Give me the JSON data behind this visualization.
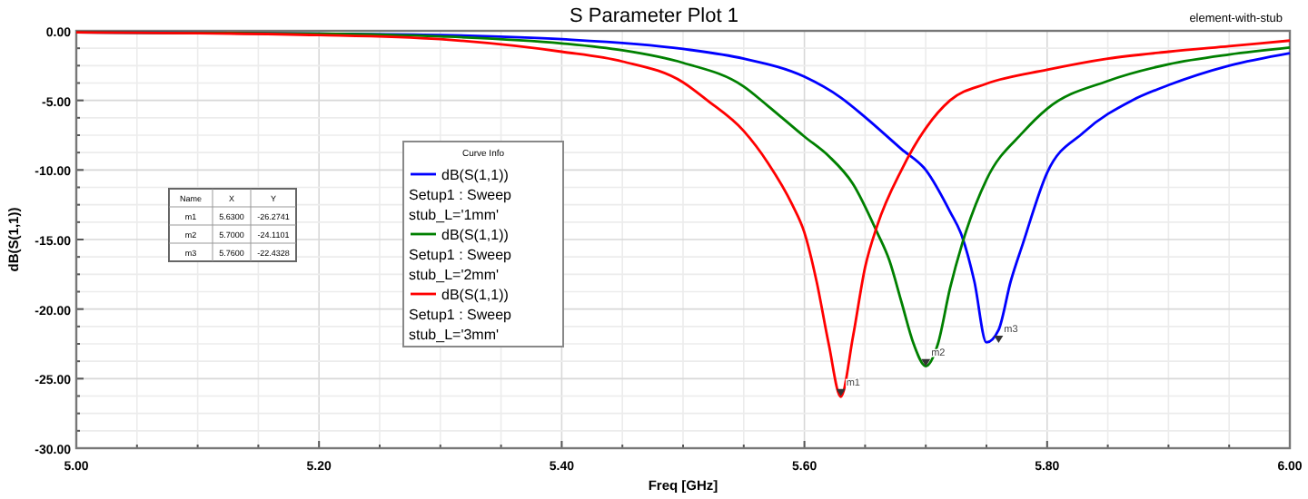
{
  "chart_data": {
    "type": "line",
    "title": "S Parameter Plot 1",
    "xlabel": "Freq [GHz]",
    "ylabel": "dB(S(1,1))",
    "legend_title": "Curve Info",
    "legend": "left",
    "grid": true,
    "line_style": "solid",
    "xlim": [
      5,
      6
    ],
    "xticks": [
      {
        "value": 5,
        "label": "5.00"
      },
      {
        "value": 5.05,
        "label": null
      },
      {
        "value": 5.1,
        "label": null
      },
      {
        "value": 5.15,
        "label": null
      },
      {
        "value": 5.2,
        "label": "5.20"
      },
      {
        "value": 5.25,
        "label": null
      },
      {
        "value": 5.3,
        "label": null
      },
      {
        "value": 5.35,
        "label": null
      },
      {
        "value": 5.4,
        "label": "5.40"
      },
      {
        "value": 5.45,
        "label": null
      },
      {
        "value": 5.5,
        "label": null
      },
      {
        "value": 5.55,
        "label": null
      },
      {
        "value": 5.6,
        "label": "5.60"
      },
      {
        "value": 5.65,
        "label": null
      },
      {
        "value": 5.7,
        "label": null
      },
      {
        "value": 5.75,
        "label": null
      },
      {
        "value": 5.8,
        "label": "5.80"
      },
      {
        "value": 5.85,
        "label": null
      },
      {
        "value": 5.9,
        "label": null
      },
      {
        "value": 5.95,
        "label": null
      },
      {
        "value": 6,
        "label": "6.00"
      }
    ],
    "ylim": [
      -30,
      0
    ],
    "yticks": [
      {
        "value": -30,
        "label": "-30.00"
      },
      {
        "value": -28.75,
        "label": null
      },
      {
        "value": -27.5,
        "label": null
      },
      {
        "value": -26.25,
        "label": null
      },
      {
        "value": -25,
        "label": "-25.00"
      },
      {
        "value": -23.75,
        "label": null
      },
      {
        "value": -22.5,
        "label": null
      },
      {
        "value": -21.25,
        "label": null
      },
      {
        "value": -20,
        "label": "-20.00"
      },
      {
        "value": -18.75,
        "label": null
      },
      {
        "value": -17.5,
        "label": null
      },
      {
        "value": -16.25,
        "label": null
      },
      {
        "value": -15,
        "label": "-15.00"
      },
      {
        "value": -13.75,
        "label": null
      },
      {
        "value": -12.5,
        "label": null
      },
      {
        "value": -11.25,
        "label": null
      },
      {
        "value": -10,
        "label": "-10.00"
      },
      {
        "value": -8.75,
        "label": null
      },
      {
        "value": -7.5,
        "label": null
      },
      {
        "value": -6.25,
        "label": null
      },
      {
        "value": -5,
        "label": "-5.00"
      },
      {
        "value": -3.75,
        "label": null
      },
      {
        "value": -2.5,
        "label": null
      },
      {
        "value": -1.25,
        "label": null
      },
      {
        "value": 0,
        "label": "0.00"
      }
    ],
    "series": [
      {
        "name": "dB(S(1,1))\nSetup1 : Sweep\nstub_L='1mm'",
        "color": "#0000ff",
        "x": [
          5,
          5.2,
          5.3,
          5.4,
          5.5,
          5.55,
          5.6,
          5.63,
          5.65,
          5.68,
          5.7,
          5.72,
          5.73,
          5.74,
          5.75,
          5.76,
          5.77,
          5.78,
          5.8,
          5.83,
          5.87,
          5.9,
          5.95,
          6
        ],
        "values": [
          -0.1,
          -0.2,
          -0.3,
          -0.6,
          -1.3,
          -2,
          -3.3,
          -4.8,
          -6.2,
          -8.5,
          -10,
          -13,
          -14.8,
          -18,
          -22.4,
          -21.5,
          -18,
          -15.3,
          -10.2,
          -7.3,
          -5,
          -3.9,
          -2.5,
          -1.6
        ]
      },
      {
        "name": "dB(S(1,1))\nSetup1 : Sweep\nstub_L='2mm'",
        "color": "#008000",
        "x": [
          5,
          5.2,
          5.3,
          5.4,
          5.45,
          5.5,
          5.55,
          5.57,
          5.6,
          5.62,
          5.64,
          5.66,
          5.67,
          5.68,
          5.69,
          5.7,
          5.71,
          5.72,
          5.73,
          5.75,
          5.78,
          5.8,
          5.85,
          5.9,
          5.95,
          6
        ],
        "values": [
          -0.1,
          -0.2,
          -0.4,
          -0.9,
          -1.4,
          -2.3,
          -4,
          -5.4,
          -7.6,
          -9,
          -11,
          -14.5,
          -16.5,
          -19.5,
          -22.5,
          -24.1,
          -22.5,
          -18.5,
          -15.3,
          -10.7,
          -7.3,
          -5.6,
          -3.6,
          -2.4,
          -1.7,
          -1.2
        ]
      },
      {
        "name": "dB(S(1,1))\nSetup1 : Sweep\nstub_L='3mm'",
        "color": "#ff0000",
        "x": [
          5,
          5.2,
          5.3,
          5.4,
          5.45,
          5.5,
          5.52,
          5.55,
          5.57,
          5.59,
          5.6,
          5.61,
          5.62,
          5.63,
          5.64,
          5.65,
          5.66,
          5.68,
          5.7,
          5.72,
          5.75,
          5.8,
          5.85,
          5.9,
          5.95,
          6
        ],
        "values": [
          -0.1,
          -0.3,
          -0.6,
          -1.5,
          -2.2,
          -3.7,
          -5,
          -7.2,
          -9.5,
          -12.5,
          -14.5,
          -18,
          -22.5,
          -26.3,
          -22,
          -17,
          -14,
          -10,
          -7,
          -5,
          -3.8,
          -2.8,
          -2,
          -1.5,
          -1.1,
          -0.7
        ]
      }
    ],
    "annotations": [
      "element-with-stub",
      "Name",
      "X",
      "Y",
      "m1",
      "5.6300",
      "-26.2741",
      "m2",
      "5.7000",
      "-24.1101",
      "m3",
      "5.7600",
      "-22.4328",
      {
        "text": "m1",
        "x": 5.63,
        "y": -26.2741
      },
      {
        "text": "m2",
        "x": 5.7,
        "y": -24.1101
      },
      {
        "text": "m3",
        "x": 5.76,
        "y": -22.4328
      }
    ]
  }
}
